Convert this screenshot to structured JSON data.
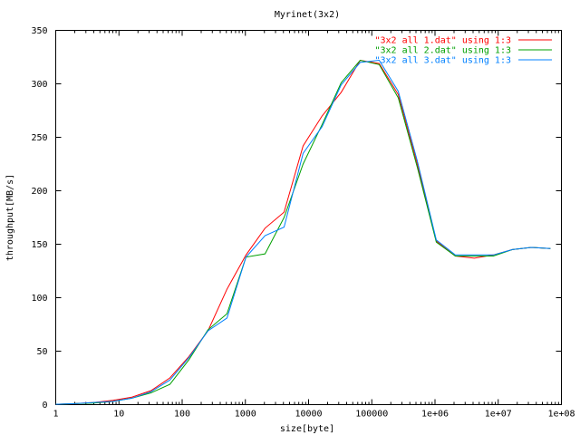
{
  "chart_data": {
    "type": "line",
    "title": "Myrinet(3x2)",
    "xlabel": "size[byte]",
    "ylabel": "throughput[MB/s]",
    "xscale": "log",
    "xlim": [
      1,
      100000000
    ],
    "ylim": [
      0,
      350
    ],
    "grid": false,
    "legend_position": "top-right",
    "x_tick_labels": [
      "1",
      "10",
      "100",
      "1000",
      "10000",
      "100000",
      "1e+06",
      "1e+07",
      "1e+08"
    ],
    "y_tick_labels": [
      "0",
      "50",
      "100",
      "150",
      "200",
      "250",
      "300",
      "350"
    ],
    "series": [
      {
        "name": "\"3x2 all 1.dat\" using 1:3",
        "color": "#ff0000",
        "x": [
          1,
          2,
          4,
          8,
          16,
          32,
          64,
          128,
          256,
          512,
          1024,
          2048,
          4096,
          8192,
          16384,
          32768,
          65536,
          131072,
          262144,
          524288,
          1048576,
          2097152,
          4194304,
          8388608,
          16777216,
          33554432,
          67108864
        ],
        "y": [
          0.3,
          1,
          2,
          4,
          7,
          13,
          25,
          45,
          69,
          108,
          140,
          165,
          180,
          242,
          270,
          292,
          322,
          319,
          290,
          225,
          153,
          139,
          137,
          140,
          145,
          147,
          146
        ]
      },
      {
        "name": "\"3x2 all 2.dat\" using 1:3",
        "color": "#00a000",
        "x": [
          1,
          2,
          4,
          8,
          16,
          32,
          64,
          128,
          256,
          512,
          1024,
          2048,
          4096,
          8192,
          16384,
          32768,
          65536,
          131072,
          262144,
          524288,
          1048576,
          2097152,
          4194304,
          8388608,
          16777216,
          33554432,
          67108864
        ],
        "y": [
          0.3,
          1,
          1.5,
          3,
          6,
          11,
          19,
          42,
          70,
          85,
          138,
          141,
          175,
          225,
          262,
          301,
          322,
          318,
          287,
          222,
          152,
          139,
          139,
          139,
          145,
          147,
          146
        ]
      },
      {
        "name": "\"3x2 all 3.dat\" using 1:3",
        "color": "#0080ff",
        "x": [
          1,
          2,
          4,
          8,
          16,
          32,
          64,
          128,
          256,
          512,
          1024,
          2048,
          4096,
          8192,
          16384,
          32768,
          65536,
          131072,
          262144,
          524288,
          1048576,
          2097152,
          4194304,
          8388608,
          16777216,
          33554432,
          67108864
        ],
        "y": [
          0.3,
          1,
          2,
          3,
          6,
          12,
          23,
          44,
          69,
          81,
          138,
          158,
          166,
          235,
          260,
          299,
          320,
          322,
          293,
          228,
          154,
          140,
          140,
          140,
          145,
          147,
          146
        ]
      }
    ]
  }
}
